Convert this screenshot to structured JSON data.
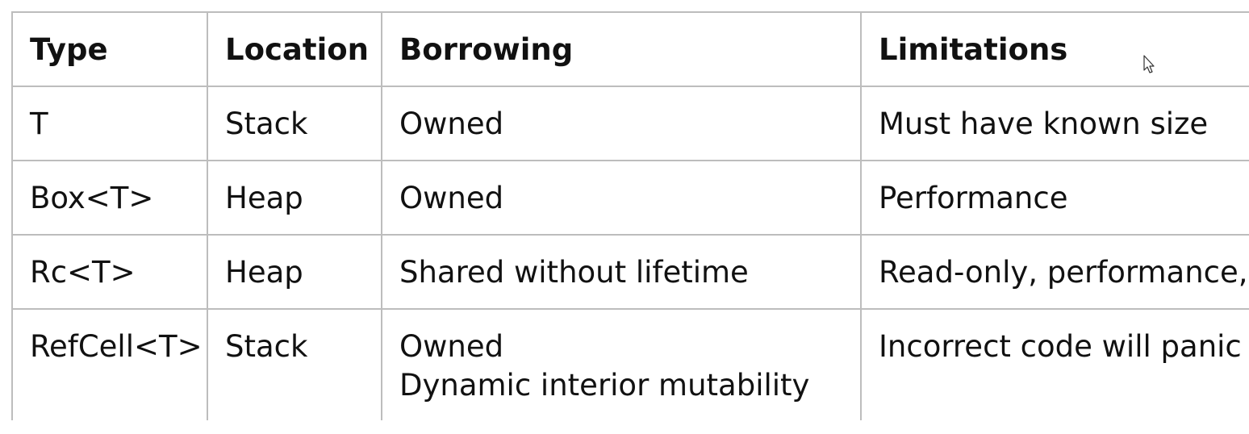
{
  "table": {
    "headers": [
      "Type",
      "Location",
      "Borrowing",
      "Limitations"
    ],
    "rows": [
      {
        "type": "T",
        "location": "Stack",
        "borrowing": [
          "Owned"
        ],
        "limitations": "Must have known size"
      },
      {
        "type": "Box<T>",
        "location": "Heap",
        "borrowing": [
          "Owned"
        ],
        "limitations": "Performance"
      },
      {
        "type": "Rc<T>",
        "location": "Heap",
        "borrowing": [
          "Shared without lifetime"
        ],
        "limitations": "Read-only, performance,"
      },
      {
        "type": "RefCell<T>",
        "location": "Stack",
        "borrowing": [
          "Owned",
          "Dynamic interior mutability"
        ],
        "limitations": "Incorrect code will panic"
      }
    ]
  },
  "colors": {
    "border": "#bdbdbd",
    "text": "#111111",
    "background": "#ffffff"
  },
  "icons": {
    "cursor": "mouse-pointer-icon"
  }
}
